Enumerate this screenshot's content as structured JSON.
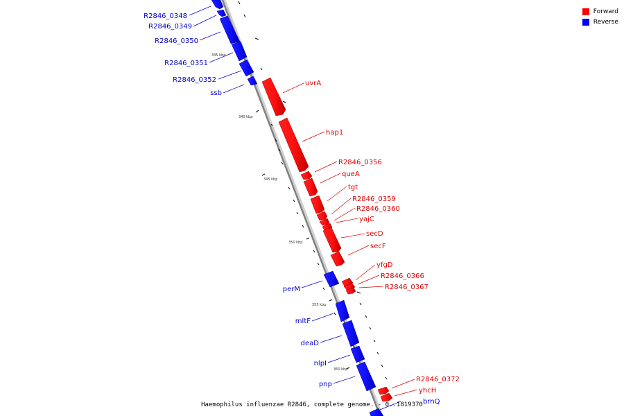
{
  "legend": {
    "forward": {
      "label": "Forward",
      "color": "#ff0000"
    },
    "reverse": {
      "label": "Reverse",
      "color": "#0000ff"
    }
  },
  "caption": "Haemophilus influenzae R2846, complete genome. - 0..1819370",
  "tick_labels": [
    "335 kbp",
    "340 kbp",
    "345 kbp",
    "350 kbp",
    "355 kbp",
    "360 kbp"
  ],
  "reverse_genes": [
    "R2846_0348",
    "R2846_0349",
    "R2846_0350",
    "R2846_0351",
    "R2846_0352",
    "ssb",
    "perM",
    "mltF",
    "deaD",
    "nlpI",
    "pnp",
    "brnQ"
  ],
  "forward_genes": [
    "uvrA",
    "hap1",
    "R2846_0356",
    "queA",
    "tgt",
    "R2846_0359",
    "R2846_0360",
    "yajC",
    "secD",
    "secF",
    "yfgD",
    "R2846_0366",
    "R2846_0367",
    "R2846_0372",
    "yhcH"
  ]
}
